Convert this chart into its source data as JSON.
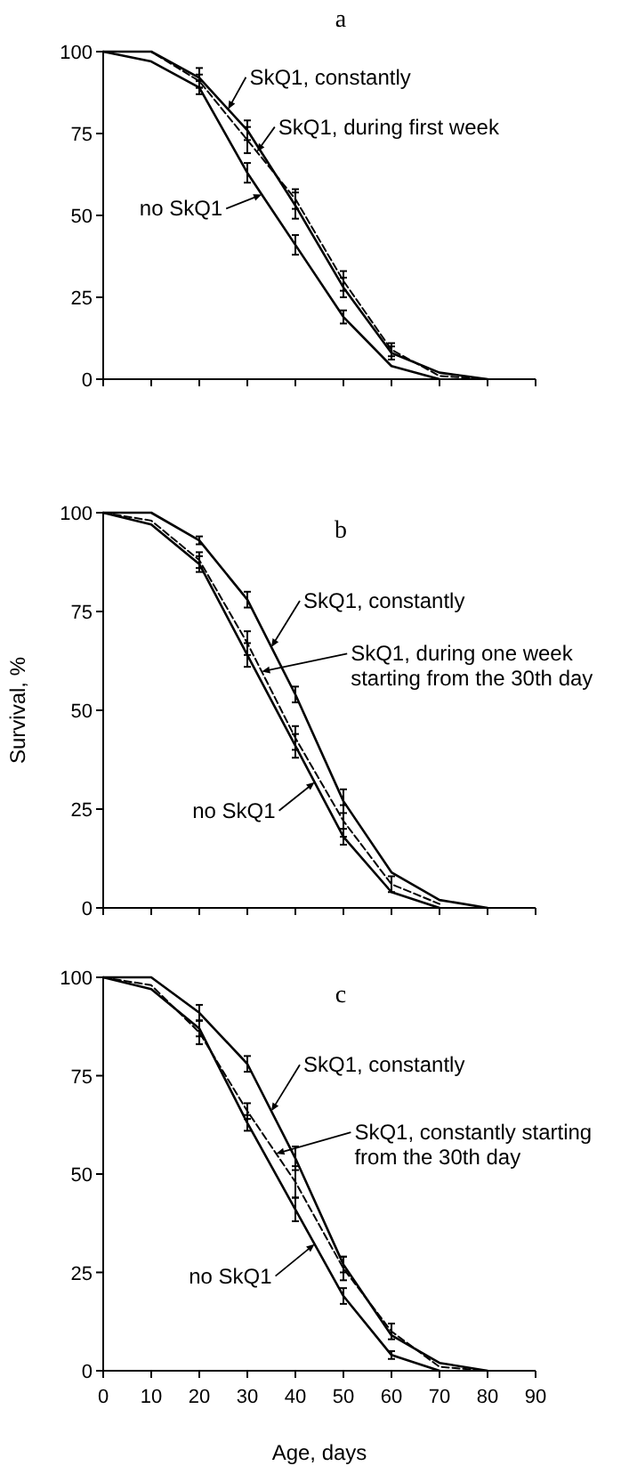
{
  "chart_data": [
    {
      "type": "line",
      "title": "a",
      "x": [
        0,
        10,
        20,
        30,
        40,
        50,
        60,
        70,
        80
      ],
      "xlim": [
        0,
        90
      ],
      "xticks": [
        0,
        10,
        20,
        30,
        40,
        50,
        60,
        70,
        80,
        90
      ],
      "ylim": [
        0,
        100
      ],
      "yticks": [
        0,
        25,
        50,
        75,
        100
      ],
      "tick_labels": "y",
      "series": [
        {
          "name": "no SkQ1",
          "color": "#000000",
          "line_style": "solid",
          "values": [
            100,
            97,
            89,
            63,
            41,
            19,
            4,
            0,
            null
          ],
          "errors": [
            null,
            null,
            2,
            3,
            3,
            2,
            null,
            null,
            null
          ]
        },
        {
          "name": "SkQ1, constantly",
          "color": "#000000",
          "line_style": "solid",
          "values": [
            100,
            100,
            92,
            76,
            53,
            28,
            8,
            2,
            0
          ],
          "errors": [
            null,
            null,
            3,
            3,
            4,
            3,
            2,
            null,
            null
          ]
        },
        {
          "name": "SkQ1, during first week",
          "color": "#000000",
          "line_style": "dashed",
          "values": [
            100,
            100,
            91,
            73,
            55,
            30,
            9,
            1,
            0
          ],
          "errors": [
            null,
            null,
            2,
            4,
            3,
            3,
            2,
            null,
            null
          ]
        }
      ]
    },
    {
      "type": "line",
      "title": "b",
      "ylabel": "Survival, %",
      "x": [
        0,
        10,
        20,
        30,
        40,
        50,
        60,
        70,
        80
      ],
      "xlim": [
        0,
        90
      ],
      "xticks": [
        0,
        10,
        20,
        30,
        40,
        50,
        60,
        70,
        80,
        90
      ],
      "ylim": [
        0,
        100
      ],
      "yticks": [
        0,
        25,
        50,
        75,
        100
      ],
      "tick_labels": "y",
      "series": [
        {
          "name": "no SkQ1",
          "color": "#000000",
          "line_style": "solid",
          "values": [
            100,
            97,
            87,
            64,
            41,
            18,
            4,
            0,
            null
          ],
          "errors": [
            null,
            null,
            2,
            3,
            3,
            2,
            null,
            null,
            null
          ]
        },
        {
          "name": "SkQ1, constantly",
          "color": "#000000",
          "line_style": "solid",
          "values": [
            100,
            100,
            93,
            78,
            54,
            27,
            9,
            2,
            0
          ],
          "errors": [
            null,
            null,
            1,
            2,
            2,
            3,
            null,
            null,
            null
          ]
        },
        {
          "name": "SkQ1, during one week starting from the 30th day",
          "color": "#000000",
          "line_style": "dashed",
          "values": [
            100,
            98,
            88,
            67,
            43,
            22,
            6,
            1,
            null
          ],
          "errors": [
            null,
            null,
            2,
            3,
            3,
            4,
            2,
            null,
            null
          ]
        }
      ]
    },
    {
      "type": "line",
      "title": "c",
      "xlabel": "Age, days",
      "x": [
        0,
        10,
        20,
        30,
        40,
        50,
        60,
        70,
        80
      ],
      "xlim": [
        0,
        90
      ],
      "xticks": [
        0,
        10,
        20,
        30,
        40,
        50,
        60,
        70,
        80,
        90
      ],
      "ylim": [
        0,
        100
      ],
      "yticks": [
        0,
        25,
        50,
        75,
        100
      ],
      "series": [
        {
          "name": "no SkQ1",
          "color": "#000000",
          "line_style": "solid",
          "values": [
            100,
            97,
            87,
            63,
            41,
            19,
            4,
            0,
            null
          ],
          "errors": [
            null,
            null,
            2,
            2,
            3,
            2,
            1,
            null,
            null
          ]
        },
        {
          "name": "SkQ1, constantly",
          "color": "#000000",
          "line_style": "solid",
          "values": [
            100,
            100,
            91,
            78,
            54,
            27,
            9,
            2,
            0
          ],
          "errors": [
            null,
            null,
            2,
            2,
            3,
            2,
            null,
            null,
            null
          ]
        },
        {
          "name": "SkQ1, constantly starting from the 30th day",
          "color": "#000000",
          "line_style": "dashed",
          "values": [
            100,
            98,
            86,
            66,
            48,
            26,
            10,
            1,
            0
          ],
          "errors": [
            null,
            null,
            3,
            2,
            4,
            3,
            2,
            null,
            null
          ]
        }
      ]
    }
  ]
}
